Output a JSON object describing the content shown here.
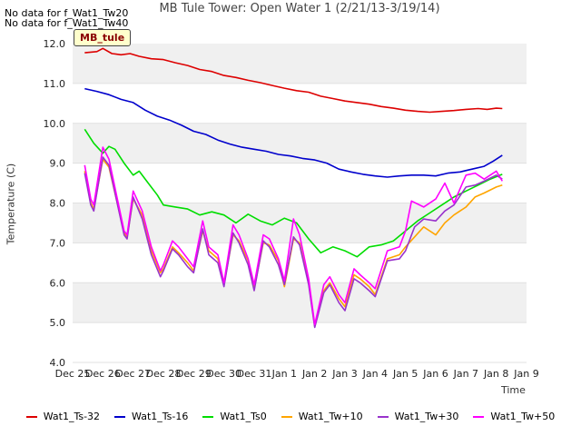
{
  "notes": [
    "No data for f_Wat1_Tw20",
    "No data for f_Wat1_Tw40"
  ],
  "tag": "MB_tule",
  "chart_data": {
    "type": "line",
    "title": "MB Tule Tower: Open Water 1 (2/21/13-3/19/14)",
    "xlabel": "Time",
    "ylabel": "Temperature (C)",
    "x_ticks": [
      "Dec 25",
      "Dec 26",
      "Dec 27",
      "Dec 28",
      "Dec 29",
      "Dec 30",
      "Dec 31",
      "Jan 1",
      "Jan 2",
      "Jan 3",
      "Jan 4",
      "Jan 5",
      "Jan 6",
      "Jan 7",
      "Jan 8",
      "Jan 9"
    ],
    "y_ticks": [
      "4.0",
      "5.0",
      "6.0",
      "7.0",
      "8.0",
      "9.0",
      "10.0",
      "11.0",
      "12.0"
    ],
    "ylim": [
      4.0,
      12.0
    ],
    "grid": "horizontal bands",
    "legend_position": "bottom",
    "x_unit": "days after Dec 25",
    "series": [
      {
        "name": "Wat1_Ts-32",
        "color": "#dd0000",
        "x": [
          0.4,
          0.8,
          1.0,
          1.3,
          1.6,
          1.9,
          2.2,
          2.6,
          3.0,
          3.4,
          3.8,
          4.2,
          4.6,
          5.0,
          5.4,
          5.8,
          6.2,
          6.6,
          7.0,
          7.4,
          7.8,
          8.2,
          8.6,
          9.0,
          9.4,
          9.8,
          10.2,
          10.6,
          11.0,
          11.4,
          11.8,
          12.2,
          12.6,
          13.0,
          13.4,
          13.7,
          14.0,
          14.2
        ],
        "y": [
          11.77,
          11.8,
          11.88,
          11.75,
          11.72,
          11.75,
          11.68,
          11.62,
          11.6,
          11.52,
          11.45,
          11.35,
          11.3,
          11.2,
          11.15,
          11.08,
          11.02,
          10.95,
          10.88,
          10.82,
          10.78,
          10.68,
          10.62,
          10.56,
          10.52,
          10.48,
          10.42,
          10.38,
          10.33,
          10.3,
          10.28,
          10.3,
          10.32,
          10.35,
          10.37,
          10.35,
          10.38,
          10.37
        ]
      },
      {
        "name": "Wat1_Ts-16",
        "color": "#0000cc",
        "x": [
          0.4,
          0.8,
          1.2,
          1.6,
          2.0,
          2.4,
          2.8,
          3.2,
          3.6,
          4.0,
          4.4,
          4.8,
          5.2,
          5.6,
          6.0,
          6.4,
          6.8,
          7.2,
          7.6,
          8.0,
          8.4,
          8.8,
          9.2,
          9.6,
          10.0,
          10.4,
          10.8,
          11.2,
          11.6,
          12.0,
          12.4,
          12.8,
          13.2,
          13.6,
          13.9,
          14.2
        ],
        "y": [
          10.87,
          10.8,
          10.72,
          10.6,
          10.52,
          10.33,
          10.18,
          10.08,
          9.95,
          9.8,
          9.72,
          9.58,
          9.48,
          9.4,
          9.35,
          9.3,
          9.22,
          9.18,
          9.12,
          9.08,
          9.0,
          8.85,
          8.78,
          8.72,
          8.68,
          8.65,
          8.68,
          8.7,
          8.7,
          8.68,
          8.75,
          8.78,
          8.85,
          8.92,
          9.05,
          9.2
        ]
      },
      {
        "name": "Wat1_Ts0",
        "color": "#00dd00",
        "x": [
          0.4,
          0.7,
          1.0,
          1.2,
          1.4,
          1.7,
          2.0,
          2.2,
          2.5,
          2.8,
          3.0,
          3.4,
          3.8,
          4.2,
          4.6,
          5.0,
          5.4,
          5.8,
          6.2,
          6.6,
          7.0,
          7.4,
          7.8,
          8.2,
          8.6,
          9.0,
          9.4,
          9.8,
          10.2,
          10.6,
          11.0,
          11.4,
          11.8,
          12.2,
          12.6,
          13.0,
          13.4,
          13.8,
          14.2
        ],
        "y": [
          9.85,
          9.5,
          9.25,
          9.42,
          9.35,
          9.0,
          8.7,
          8.8,
          8.5,
          8.2,
          7.95,
          7.9,
          7.85,
          7.7,
          7.78,
          7.7,
          7.5,
          7.72,
          7.55,
          7.45,
          7.62,
          7.5,
          7.1,
          6.75,
          6.9,
          6.8,
          6.65,
          6.9,
          6.95,
          7.05,
          7.3,
          7.55,
          7.75,
          7.95,
          8.15,
          8.3,
          8.45,
          8.6,
          8.72
        ]
      },
      {
        "name": "Wat1_Tw+10",
        "color": "#ffa500",
        "x": [
          0.4,
          0.6,
          0.7,
          1.0,
          1.2,
          1.7,
          1.8,
          2.0,
          2.3,
          2.6,
          2.9,
          3.0,
          3.3,
          3.5,
          3.8,
          4.0,
          4.3,
          4.5,
          4.8,
          5.0,
          5.3,
          5.5,
          5.8,
          6.0,
          6.3,
          6.5,
          6.8,
          7.0,
          7.3,
          7.5,
          7.8,
          8.0,
          8.3,
          8.5,
          8.8,
          9.0,
          9.3,
          9.5,
          9.8,
          10.0,
          10.4,
          10.8,
          11.0,
          11.3,
          11.6,
          12.0,
          12.3,
          12.6,
          13.0,
          13.3,
          13.6,
          14.0,
          14.2
        ],
        "y": [
          8.8,
          8.0,
          7.85,
          9.1,
          8.9,
          7.25,
          7.15,
          8.1,
          7.7,
          6.8,
          6.25,
          6.35,
          6.9,
          6.75,
          6.5,
          6.3,
          7.3,
          6.8,
          6.6,
          5.95,
          7.2,
          7.05,
          6.55,
          5.85,
          7.0,
          6.95,
          6.55,
          5.9,
          7.1,
          7.0,
          6.0,
          4.9,
          5.8,
          6.0,
          5.6,
          5.4,
          6.2,
          6.1,
          5.9,
          5.7,
          6.6,
          6.7,
          6.9,
          7.15,
          7.4,
          7.2,
          7.5,
          7.7,
          7.9,
          8.15,
          8.25,
          8.4,
          8.45
        ]
      },
      {
        "name": "Wat1_Tw+30",
        "color": "#9933cc",
        "x": [
          0.4,
          0.6,
          0.7,
          1.0,
          1.2,
          1.7,
          1.8,
          2.0,
          2.3,
          2.6,
          2.9,
          3.0,
          3.3,
          3.5,
          3.8,
          4.0,
          4.3,
          4.5,
          4.8,
          5.0,
          5.3,
          5.5,
          5.8,
          6.0,
          6.3,
          6.5,
          6.8,
          7.0,
          7.3,
          7.5,
          7.8,
          8.0,
          8.3,
          8.5,
          8.8,
          9.0,
          9.3,
          9.5,
          9.8,
          10.0,
          10.4,
          10.8,
          11.0,
          11.3,
          11.6,
          12.0,
          12.3,
          12.6,
          13.0,
          13.3,
          13.6,
          14.0,
          14.2
        ],
        "y": [
          8.75,
          7.95,
          7.8,
          9.15,
          8.95,
          7.2,
          7.1,
          8.15,
          7.6,
          6.7,
          6.15,
          6.3,
          6.85,
          6.7,
          6.4,
          6.25,
          7.35,
          6.7,
          6.5,
          5.9,
          7.25,
          7.0,
          6.45,
          5.8,
          7.05,
          6.9,
          6.45,
          5.95,
          7.15,
          6.95,
          5.95,
          4.88,
          5.75,
          5.95,
          5.5,
          5.3,
          6.1,
          6.0,
          5.8,
          5.65,
          6.55,
          6.6,
          6.8,
          7.4,
          7.6,
          7.55,
          7.8,
          7.95,
          8.4,
          8.45,
          8.55,
          8.7,
          8.6
        ]
      },
      {
        "name": "Wat1_Tw+50",
        "color": "#ff00ff",
        "x": [
          0.4,
          0.6,
          0.7,
          1.0,
          1.2,
          1.7,
          1.8,
          2.0,
          2.3,
          2.6,
          2.9,
          3.0,
          3.3,
          3.5,
          3.8,
          4.0,
          4.3,
          4.5,
          4.8,
          5.0,
          5.3,
          5.5,
          5.8,
          6.0,
          6.3,
          6.5,
          6.8,
          7.0,
          7.3,
          7.5,
          7.8,
          8.0,
          8.3,
          8.5,
          8.8,
          9.0,
          9.3,
          9.5,
          9.8,
          10.0,
          10.4,
          10.8,
          11.0,
          11.2,
          11.6,
          12.0,
          12.3,
          12.6,
          13.0,
          13.3,
          13.6,
          14.0,
          14.2
        ],
        "y": [
          8.95,
          8.1,
          7.95,
          9.4,
          9.1,
          7.3,
          7.2,
          8.3,
          7.8,
          6.9,
          6.3,
          6.45,
          7.05,
          6.9,
          6.6,
          6.4,
          7.55,
          6.9,
          6.7,
          6.0,
          7.45,
          7.2,
          6.6,
          5.95,
          7.2,
          7.1,
          6.6,
          6.05,
          7.6,
          7.2,
          6.1,
          4.95,
          5.95,
          6.15,
          5.7,
          5.5,
          6.35,
          6.2,
          6.0,
          5.85,
          6.8,
          6.9,
          7.3,
          8.05,
          7.9,
          8.1,
          8.5,
          8.0,
          8.7,
          8.75,
          8.6,
          8.8,
          8.55
        ]
      }
    ]
  }
}
